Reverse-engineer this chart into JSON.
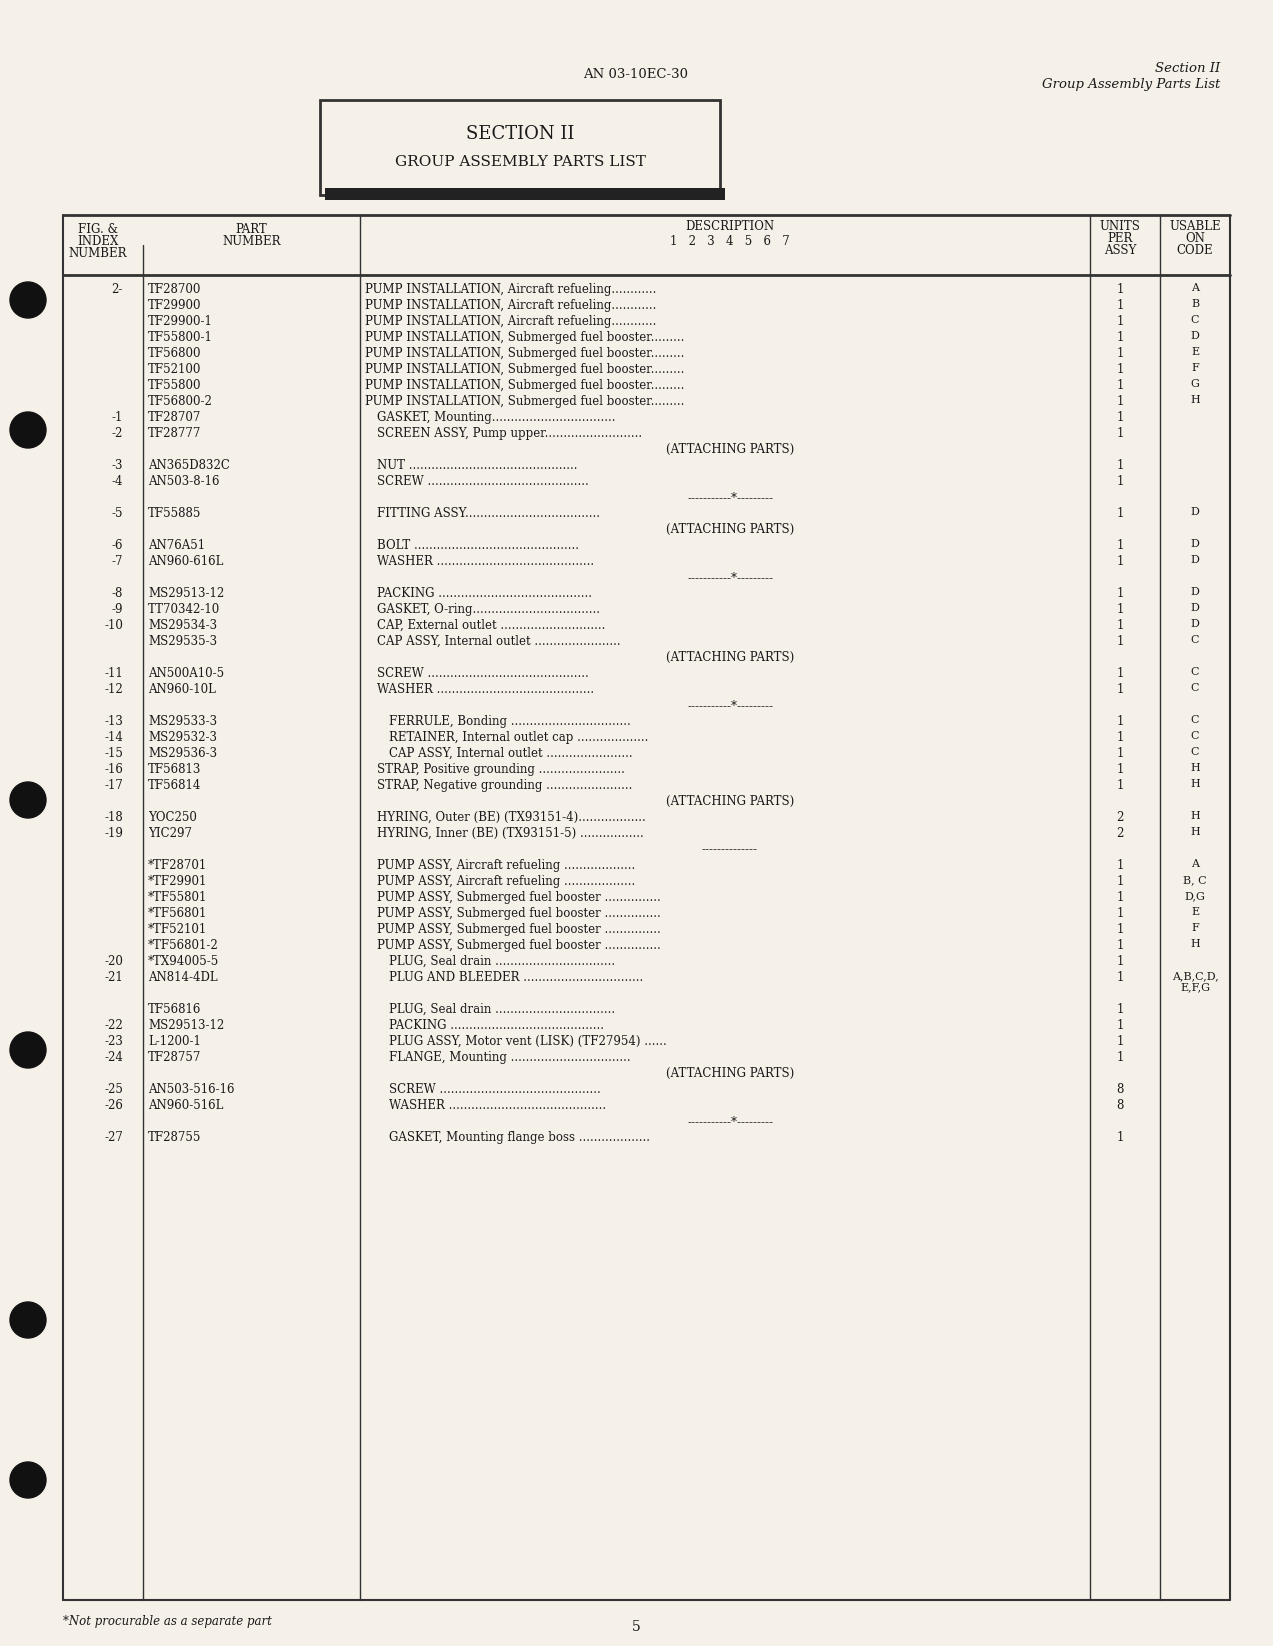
{
  "page_num": "5",
  "header_center": "AN 03-10EC-30",
  "header_right_line1": "Section II",
  "header_right_line2": "Group Assembly Parts List",
  "section_box_title": "SECTION II",
  "section_box_subtitle": "GROUP ASSEMBLY PARTS LIST",
  "footer_note": "*Not procurable as a separate part",
  "col_headers": {
    "fig_index": "FIG. &\nINDEX\nNUMBER",
    "part_number": "PART\nNUMBER",
    "description": "DESCRIPTION",
    "desc_sub": "1  2  3  4  5  6  7",
    "units_per_assy": "UNITS\nPER\nASSY",
    "usable_on_code": "USABLE\nON\nCODE"
  },
  "rows": [
    {
      "fig": "2-",
      "part": "TF28700",
      "indent": 0,
      "desc": "PUMP INSTALLATION, Aircraft refueling............",
      "units": "1",
      "code": "A"
    },
    {
      "fig": "",
      "part": "TF29900",
      "indent": 0,
      "desc": "PUMP INSTALLATION, Aircraft refueling............",
      "units": "1",
      "code": "B"
    },
    {
      "fig": "",
      "part": "TF29900-1",
      "indent": 0,
      "desc": "PUMP INSTALLATION, Aircraft refueling............",
      "units": "1",
      "code": "C"
    },
    {
      "fig": "",
      "part": "TF55800-1",
      "indent": 0,
      "desc": "PUMP INSTALLATION, Submerged fuel booster.........",
      "units": "1",
      "code": "D"
    },
    {
      "fig": "",
      "part": "TF56800",
      "indent": 0,
      "desc": "PUMP INSTALLATION, Submerged fuel booster.........",
      "units": "1",
      "code": "E"
    },
    {
      "fig": "",
      "part": "TF52100",
      "indent": 0,
      "desc": "PUMP INSTALLATION, Submerged fuel booster.........",
      "units": "1",
      "code": "F"
    },
    {
      "fig": "",
      "part": "TF55800",
      "indent": 0,
      "desc": "PUMP INSTALLATION, Submerged fuel booster.........",
      "units": "1",
      "code": "G"
    },
    {
      "fig": "",
      "part": "TF56800-2",
      "indent": 0,
      "desc": "PUMP INSTALLATION, Submerged fuel booster.........",
      "units": "1",
      "code": "H"
    },
    {
      "fig": "-1",
      "part": "TF28707",
      "indent": 1,
      "desc": "GASKET, Mounting.................................",
      "units": "1",
      "code": ""
    },
    {
      "fig": "-2",
      "part": "TF28777",
      "indent": 1,
      "desc": "SCREEN ASSY, Pump upper..........................",
      "units": "1",
      "code": ""
    },
    {
      "fig": "",
      "part": "",
      "indent": 0,
      "desc": "(ATTACHING PARTS)",
      "units": "",
      "code": ""
    },
    {
      "fig": "-3",
      "part": "AN365D832C",
      "indent": 1,
      "desc": "NUT .............................................",
      "units": "1",
      "code": ""
    },
    {
      "fig": "-4",
      "part": "AN503-8-16",
      "indent": 1,
      "desc": "SCREW ...........................................",
      "units": "1",
      "code": ""
    },
    {
      "fig": "",
      "part": "",
      "indent": 0,
      "desc": "-----------*---------",
      "units": "",
      "code": ""
    },
    {
      "fig": "-5",
      "part": "TF55885",
      "indent": 1,
      "desc": "FITTING ASSY....................................",
      "units": "1",
      "code": "D"
    },
    {
      "fig": "",
      "part": "",
      "indent": 0,
      "desc": "(ATTACHING PARTS)",
      "units": "",
      "code": ""
    },
    {
      "fig": "-6",
      "part": "AN76A51",
      "indent": 1,
      "desc": "BOLT ............................................",
      "units": "1",
      "code": "D"
    },
    {
      "fig": "-7",
      "part": "AN960-616L",
      "indent": 1,
      "desc": "WASHER ..........................................",
      "units": "1",
      "code": "D"
    },
    {
      "fig": "",
      "part": "",
      "indent": 0,
      "desc": "-----------*---------",
      "units": "",
      "code": ""
    },
    {
      "fig": "-8",
      "part": "MS29513-12",
      "indent": 1,
      "desc": "PACKING .........................................",
      "units": "1",
      "code": "D"
    },
    {
      "fig": "-9",
      "part": "TT70342-10",
      "indent": 1,
      "desc": "GASKET, O-ring..................................",
      "units": "1",
      "code": "D"
    },
    {
      "fig": "-10",
      "part": "MS29534-3",
      "indent": 1,
      "desc": "CAP, External outlet ............................",
      "units": "1",
      "code": "D"
    },
    {
      "fig": "",
      "part": "MS29535-3",
      "indent": 1,
      "desc": "CAP ASSY, Internal outlet .......................",
      "units": "1",
      "code": "C"
    },
    {
      "fig": "",
      "part": "",
      "indent": 0,
      "desc": "(ATTACHING PARTS)",
      "units": "",
      "code": ""
    },
    {
      "fig": "-11",
      "part": "AN500A10-5",
      "indent": 1,
      "desc": "SCREW ...........................................",
      "units": "1",
      "code": "C"
    },
    {
      "fig": "-12",
      "part": "AN960-10L",
      "indent": 1,
      "desc": "WASHER ..........................................",
      "units": "1",
      "code": "C"
    },
    {
      "fig": "",
      "part": "",
      "indent": 0,
      "desc": "-----------*---------",
      "units": "",
      "code": ""
    },
    {
      "fig": "-13",
      "part": "MS29533-3",
      "indent": 2,
      "desc": "FERRULE, Bonding ................................",
      "units": "1",
      "code": "C"
    },
    {
      "fig": "-14",
      "part": "MS29532-3",
      "indent": 2,
      "desc": "RETAINER, Internal outlet cap ...................",
      "units": "1",
      "code": "C"
    },
    {
      "fig": "-15",
      "part": "MS29536-3",
      "indent": 2,
      "desc": "CAP ASSY, Internal outlet .......................",
      "units": "1",
      "code": "C"
    },
    {
      "fig": "-16",
      "part": "TF56813",
      "indent": 1,
      "desc": "STRAP, Positive grounding .......................",
      "units": "1",
      "code": "H"
    },
    {
      "fig": "-17",
      "part": "TF56814",
      "indent": 1,
      "desc": "STRAP, Negative grounding .......................",
      "units": "1",
      "code": "H"
    },
    {
      "fig": "",
      "part": "",
      "indent": 0,
      "desc": "(ATTACHING PARTS)",
      "units": "",
      "code": ""
    },
    {
      "fig": "-18",
      "part": "YOC250",
      "indent": 1,
      "desc": "HYRING, Outer (BE) (TX93151-4)..................",
      "units": "2",
      "code": "H"
    },
    {
      "fig": "-19",
      "part": "YIC297",
      "indent": 1,
      "desc": "HYRING, Inner (BE) (TX93151-5) .................",
      "units": "2",
      "code": "H"
    },
    {
      "fig": "",
      "part": "",
      "indent": 0,
      "desc": "--------------",
      "units": "",
      "code": ""
    },
    {
      "fig": "",
      "part": "*TF28701",
      "indent": 1,
      "desc": "PUMP ASSY, Aircraft refueling ...................",
      "units": "1",
      "code": "A"
    },
    {
      "fig": "",
      "part": "*TF29901",
      "indent": 1,
      "desc": "PUMP ASSY, Aircraft refueling ...................",
      "units": "1",
      "code": "B, C"
    },
    {
      "fig": "",
      "part": "*TF55801",
      "indent": 1,
      "desc": "PUMP ASSY, Submerged fuel booster ...............",
      "units": "1",
      "code": "D,G"
    },
    {
      "fig": "",
      "part": "*TF56801",
      "indent": 1,
      "desc": "PUMP ASSY, Submerged fuel booster ...............",
      "units": "1",
      "code": "E"
    },
    {
      "fig": "",
      "part": "*TF52101",
      "indent": 1,
      "desc": "PUMP ASSY, Submerged fuel booster ...............",
      "units": "1",
      "code": "F"
    },
    {
      "fig": "",
      "part": "*TF56801-2",
      "indent": 1,
      "desc": "PUMP ASSY, Submerged fuel booster ...............",
      "units": "1",
      "code": "H"
    },
    {
      "fig": "-20",
      "part": "*TX94005-5",
      "indent": 2,
      "desc": "PLUG, Seal drain ................................",
      "units": "1",
      "code": ""
    },
    {
      "fig": "-21",
      "part": "AN814-4DL",
      "indent": 2,
      "desc": "PLUG AND BLEEDER ................................",
      "units": "1",
      "code": "A,B,C,D,\nE,F,G"
    },
    {
      "fig": "",
      "part": "",
      "indent": 0,
      "desc": "",
      "units": "",
      "code": ""
    },
    {
      "fig": "",
      "part": "TF56816",
      "indent": 2,
      "desc": "PLUG, Seal drain ................................",
      "units": "1",
      "code": ""
    },
    {
      "fig": "-22",
      "part": "MS29513-12",
      "indent": 2,
      "desc": "PACKING .........................................",
      "units": "1",
      "code": ""
    },
    {
      "fig": "-23",
      "part": "L-1200-1",
      "indent": 2,
      "desc": "PLUG ASSY, Motor vent (LISK) (TF27954) ......",
      "units": "1",
      "code": ""
    },
    {
      "fig": "-24",
      "part": "TF28757",
      "indent": 2,
      "desc": "FLANGE, Mounting ................................",
      "units": "1",
      "code": ""
    },
    {
      "fig": "",
      "part": "",
      "indent": 0,
      "desc": "(ATTACHING PARTS)",
      "units": "",
      "code": ""
    },
    {
      "fig": "-25",
      "part": "AN503-516-16",
      "indent": 2,
      "desc": "SCREW ...........................................",
      "units": "8",
      "code": ""
    },
    {
      "fig": "-26",
      "part": "AN960-516L",
      "indent": 2,
      "desc": "WASHER ..........................................",
      "units": "8",
      "code": ""
    },
    {
      "fig": "",
      "part": "",
      "indent": 0,
      "desc": "-----------*---------",
      "units": "",
      "code": ""
    },
    {
      "fig": "-27",
      "part": "TF28755",
      "indent": 2,
      "desc": "GASKET, Mounting flange boss ...................",
      "units": "1",
      "code": ""
    }
  ],
  "bg_color": "#f5f0e8",
  "text_color": "#1a1a1a",
  "line_color": "#333333"
}
